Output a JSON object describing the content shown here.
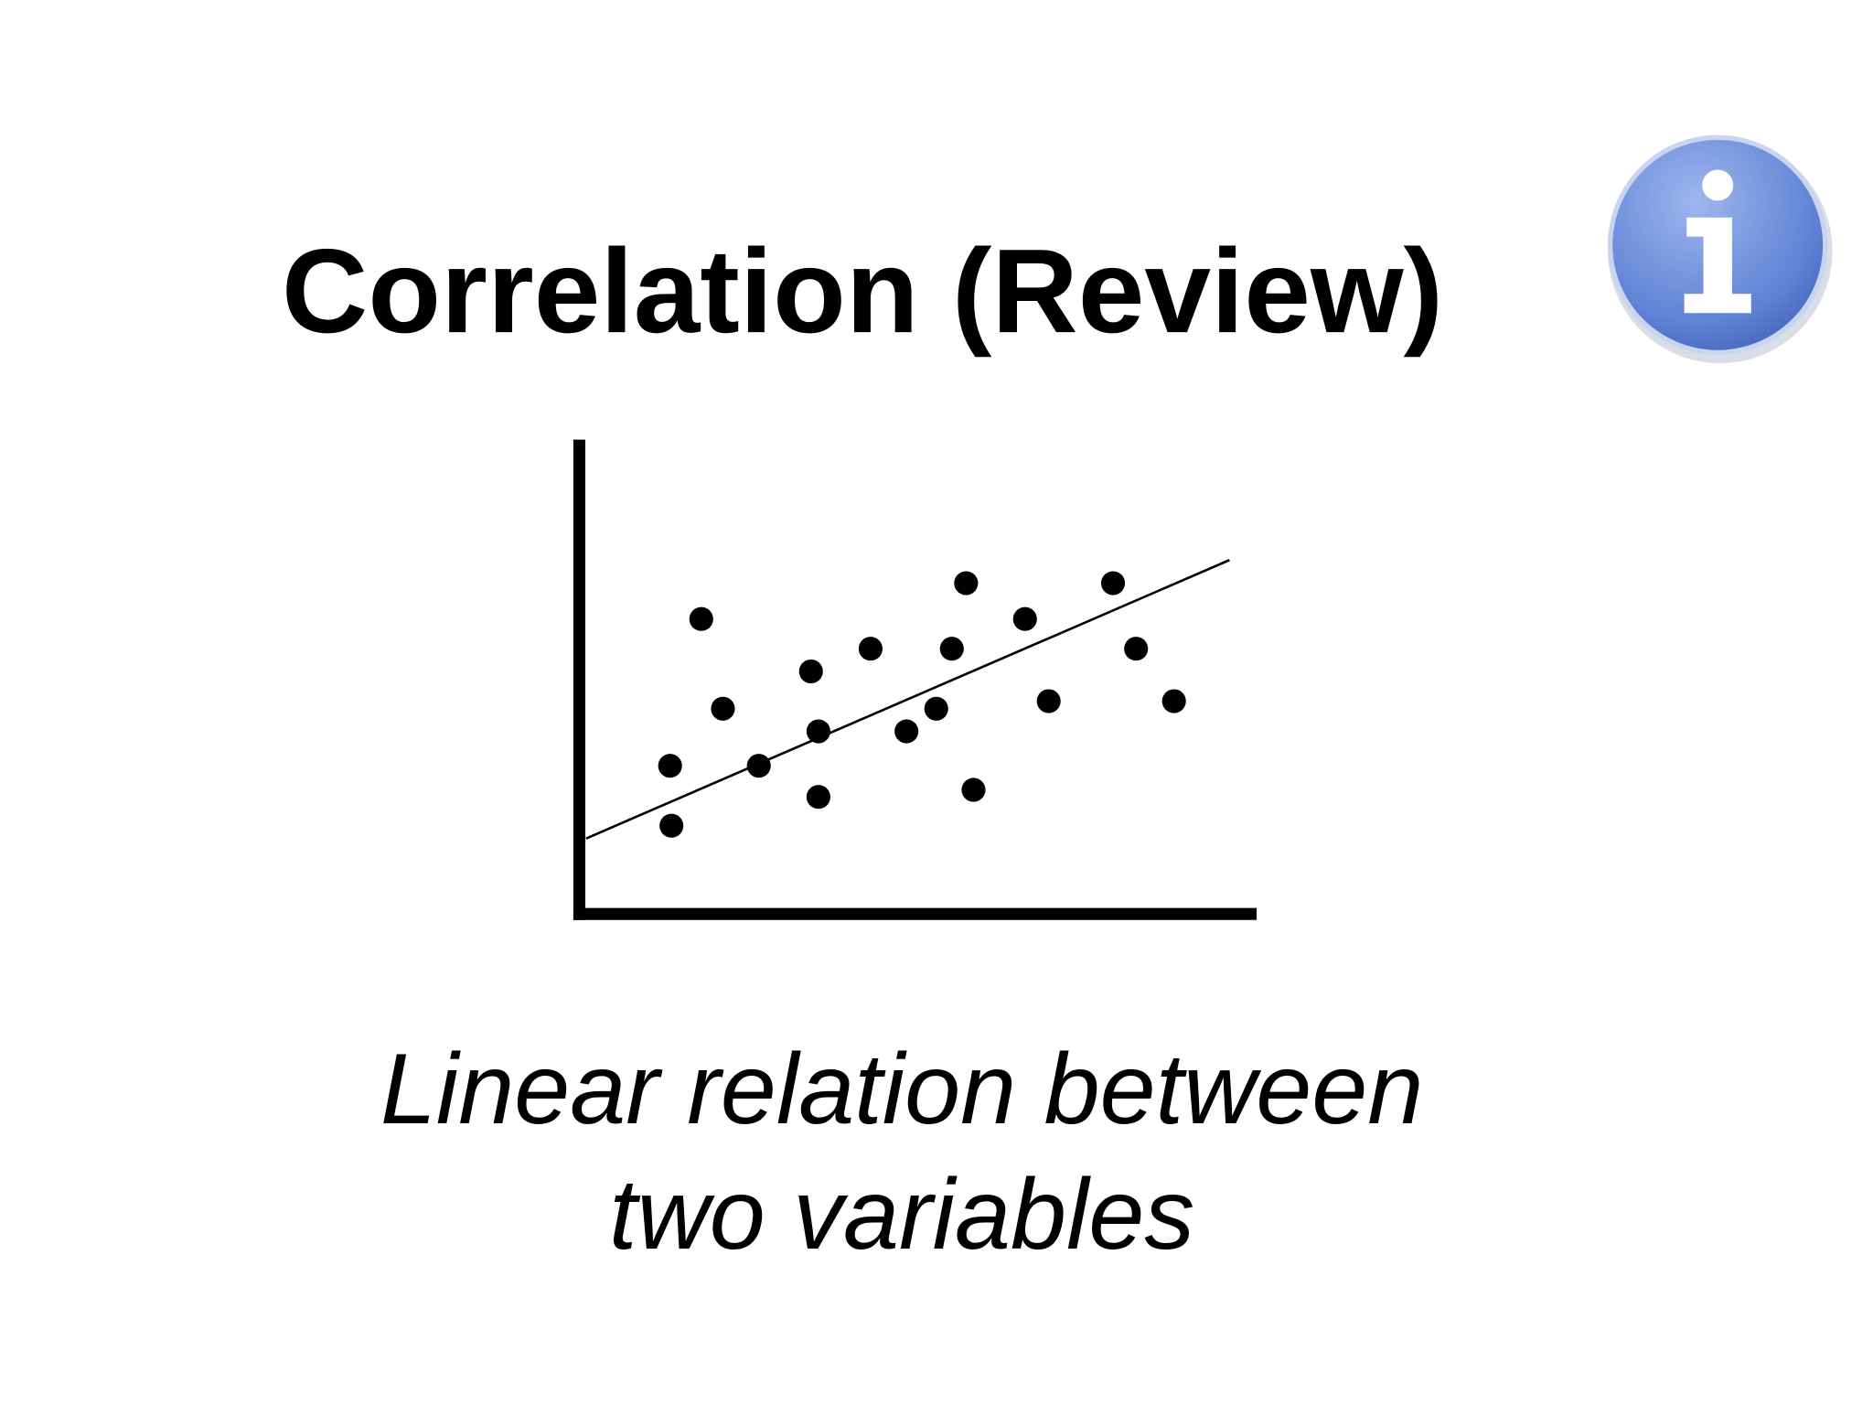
{
  "header": {
    "title": "Correlation (Review)"
  },
  "chart_data": {
    "type": "scatter",
    "x": [
      18.0,
      21.2,
      13.4,
      13.6,
      26.5,
      34.2,
      35.3,
      35.3,
      43.0,
      48.3,
      52.7,
      55.0,
      57.1,
      58.2,
      65.8,
      69.3,
      78.8,
      82.2,
      87.8
    ],
    "values": [
      62.5,
      43.5,
      31.4,
      18.7,
      31.4,
      51.4,
      38.7,
      24.8,
      56.2,
      38.7,
      43.5,
      56.2,
      70.1,
      26.3,
      62.5,
      45.1,
      70.1,
      56.2,
      45.1
    ],
    "trendline": {
      "x": [
        1,
        96
      ],
      "y": [
        16,
        75
      ]
    },
    "color": "#000000",
    "xlim": [
      0,
      100
    ],
    "ylim": [
      0,
      100
    ]
  },
  "caption": {
    "lines": [
      "Linear relation between",
      "two variables"
    ]
  }
}
